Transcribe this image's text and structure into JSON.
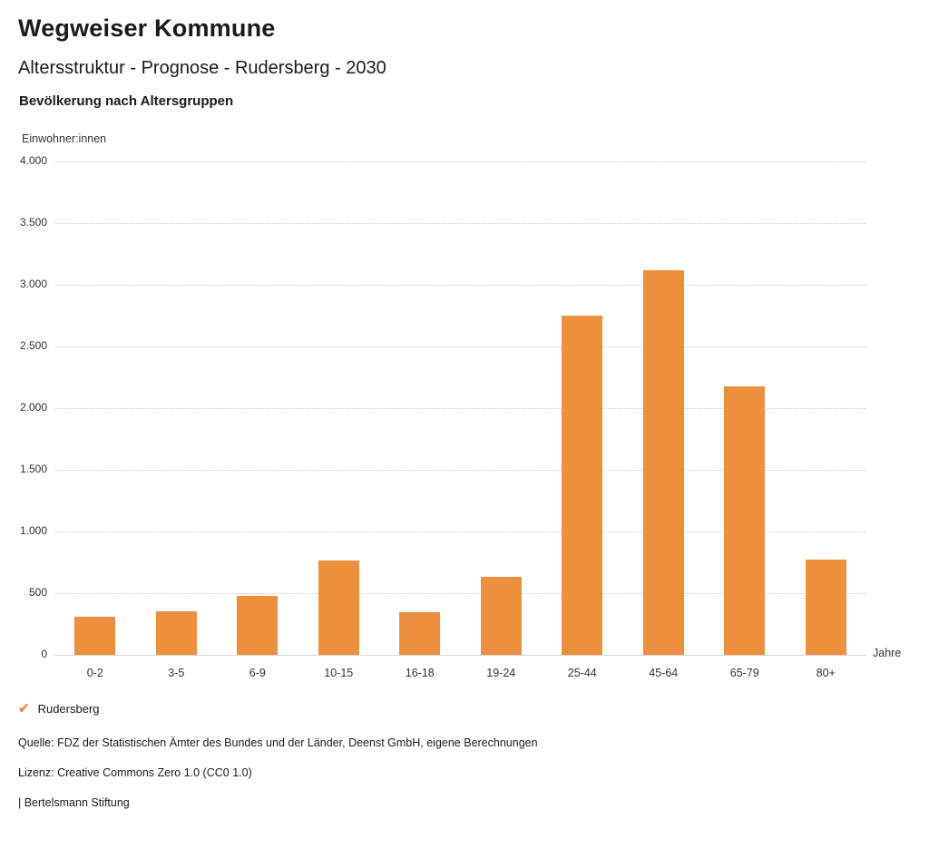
{
  "header": {
    "title": "Wegweiser Kommune",
    "subtitle": "Altersstruktur - Prognose - Rudersberg - 2030",
    "chart_heading": "Bevölkerung nach Altersgruppen"
  },
  "chart_data": {
    "type": "bar",
    "title": "Bevölkerung nach Altersgruppen",
    "xlabel": "Jahre",
    "ylabel": "Einwohner:innen",
    "categories": [
      "0-2",
      "3-5",
      "6-9",
      "10-15",
      "16-18",
      "19-24",
      "25-44",
      "45-64",
      "65-79",
      "80+"
    ],
    "values": [
      310,
      355,
      480,
      765,
      345,
      630,
      2750,
      3120,
      2175,
      770
    ],
    "series_name": "Rudersberg",
    "ylim": [
      0,
      4000
    ],
    "ytick_step": 500,
    "ytick_labels": [
      "0",
      "500",
      "1.000",
      "1.500",
      "2.000",
      "2.500",
      "3.000",
      "3.500",
      "4.000"
    ],
    "grid": true,
    "legend_position": "bottom-left",
    "bar_color": "#ED8F3C"
  },
  "legend": {
    "check_icon": "✔",
    "label": "Rudersberg"
  },
  "footer": {
    "source": "Quelle: FDZ der Statistischen Ämter des Bundes und der Länder, Deenst GmbH, eigene Berechnungen",
    "license": "Lizenz: Creative Commons Zero 1.0 (CC0 1.0)",
    "brand": "| Bertelsmann Stiftung"
  }
}
